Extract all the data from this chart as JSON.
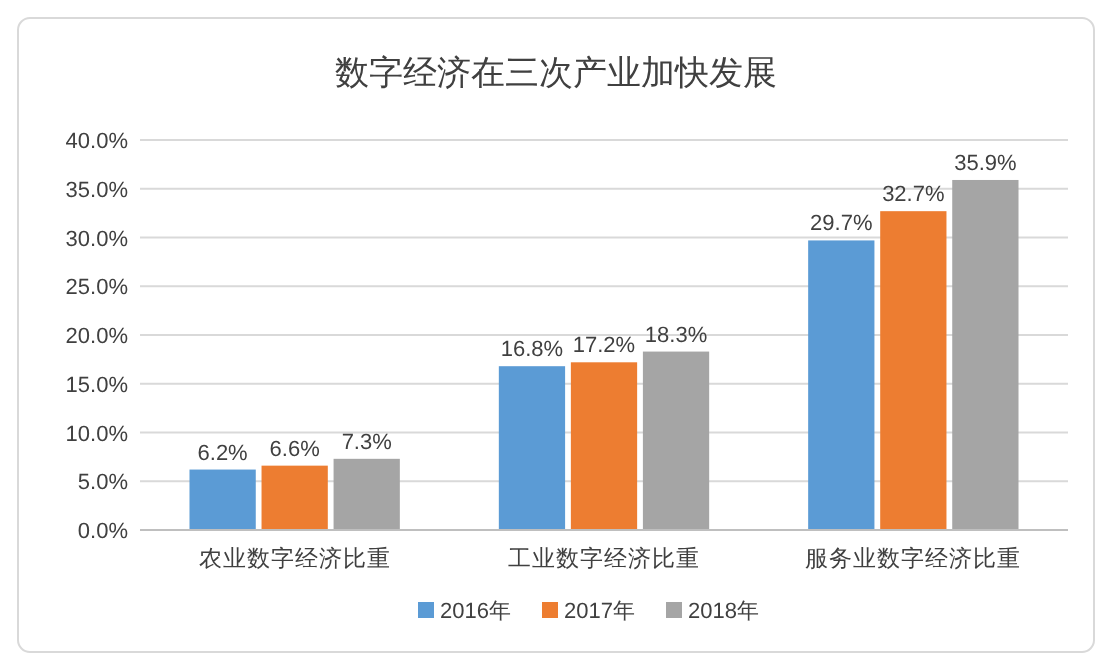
{
  "chart_data": {
    "type": "bar",
    "title": "数字经济在三次产业加快发展",
    "categories": [
      "农业数字经济比重",
      "工业数字经济比重",
      "服务业数字经济比重"
    ],
    "series": [
      {
        "name": "2016年",
        "color": "#5b9bd5",
        "values": [
          6.2,
          16.8,
          29.7
        ]
      },
      {
        "name": "2017年",
        "color": "#ed7d31",
        "values": [
          6.6,
          17.2,
          32.7
        ]
      },
      {
        "name": "2018年",
        "color": "#a5a5a5",
        "values": [
          7.3,
          18.3,
          35.9
        ]
      }
    ],
    "value_labels": [
      [
        "6.2%",
        "16.8%",
        "29.7%"
      ],
      [
        "6.6%",
        "17.2%",
        "32.7%"
      ],
      [
        "7.3%",
        "18.3%",
        "35.9%"
      ]
    ],
    "ylim": [
      0,
      40
    ],
    "yticks": [
      {
        "value": 0,
        "label": "0.0%"
      },
      {
        "value": 5,
        "label": "5.0%"
      },
      {
        "value": 10,
        "label": "10.0%"
      },
      {
        "value": 15,
        "label": "15.0%"
      },
      {
        "value": 20,
        "label": "20.0%"
      },
      {
        "value": 25,
        "label": "25.0%"
      },
      {
        "value": 30,
        "label": "30.0%"
      },
      {
        "value": 35,
        "label": "35.0%"
      },
      {
        "value": 40,
        "label": "40.0%"
      }
    ],
    "grid": "y",
    "legend": "bottom"
  }
}
